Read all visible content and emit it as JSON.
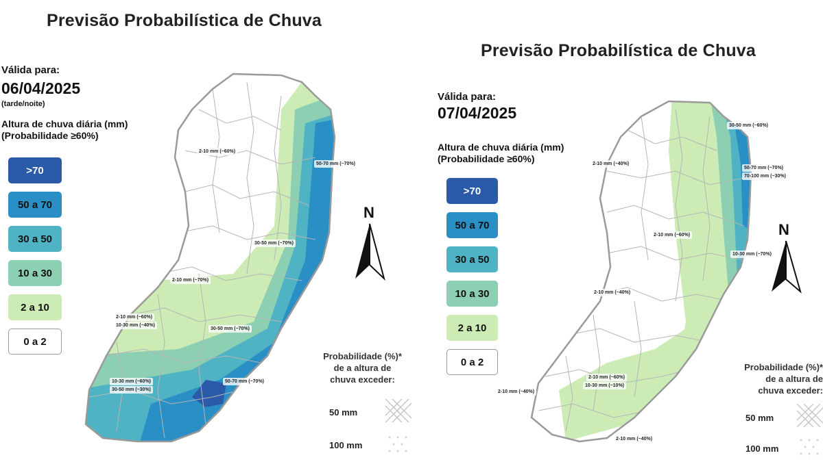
{
  "panels": [
    {
      "title": "Previsão Probabilística de Chuva",
      "valid_label": "Válida para:",
      "date": "06/04/2025",
      "period": "(tarde/noite)",
      "rain_title": "Altura de chuva diária (mm)",
      "rain_subtitle": "(Probabilidade ≥60%)",
      "map_labels": [
        "2-10 mm (~60%)",
        "50-70 mm (~70%)",
        "30-50 mm (~70%)",
        "2-10 mm (~70%)",
        "2-10 mm (~60%)",
        "10-30 mm (~40%)",
        "30-50 mm (~70%)",
        "10-30 mm (~60%)",
        "30-50 mm (~30%)",
        "50-70 mm (~70%)"
      ],
      "north": "N",
      "probability_title": [
        "Probabilidade (%)*",
        "de a altura de",
        "chuva exceder:"
      ],
      "probability_50": "50 mm",
      "probability_100": "100 mm"
    },
    {
      "title": "Previsão Probabilística de Chuva",
      "valid_label": "Válida para:",
      "date": "07/04/2025",
      "rain_title": "Altura de chuva diária (mm)",
      "rain_subtitle": "(Probabilidade ≥60%)",
      "map_labels": [
        "30-50 mm (~60%)",
        "2-10 mm (~40%)",
        "50-70 mm (~70%)",
        "70-100 mm (~30%)",
        "2-10 mm (~60%)",
        "10-30 mm (~70%)",
        "2-10 mm (~40%)",
        "2-10 mm (~60%)",
        "10-30 mm (~10%)",
        "2-10 mm (~40%)",
        "2-10 mm (~40%)"
      ],
      "north": "N",
      "probability_title": [
        "Probabilidade (%)*",
        "de a altura de",
        "chuva exceder:"
      ],
      "probability_50": "50 mm",
      "probability_100": "100 mm"
    }
  ],
  "legend": [
    {
      "label": ">70",
      "color": "#2b5aa8",
      "text_color": "#ffffff"
    },
    {
      "label": "50 a 70",
      "color": "#2a8fc4",
      "text_color": "#111111"
    },
    {
      "label": "30 a 50",
      "color": "#4fb3c4",
      "text_color": "#111111"
    },
    {
      "label": "10 a 30",
      "color": "#8ccfb3",
      "text_color": "#111111"
    },
    {
      "label": "2 a 10",
      "color": "#cdebb5",
      "text_color": "#111111"
    },
    {
      "label": "0 a 2",
      "color": "#ffffff",
      "text_color": "#111111"
    }
  ],
  "colors": {
    "border": "#9a9a9a",
    "county_lines": "#b5b5b5"
  }
}
